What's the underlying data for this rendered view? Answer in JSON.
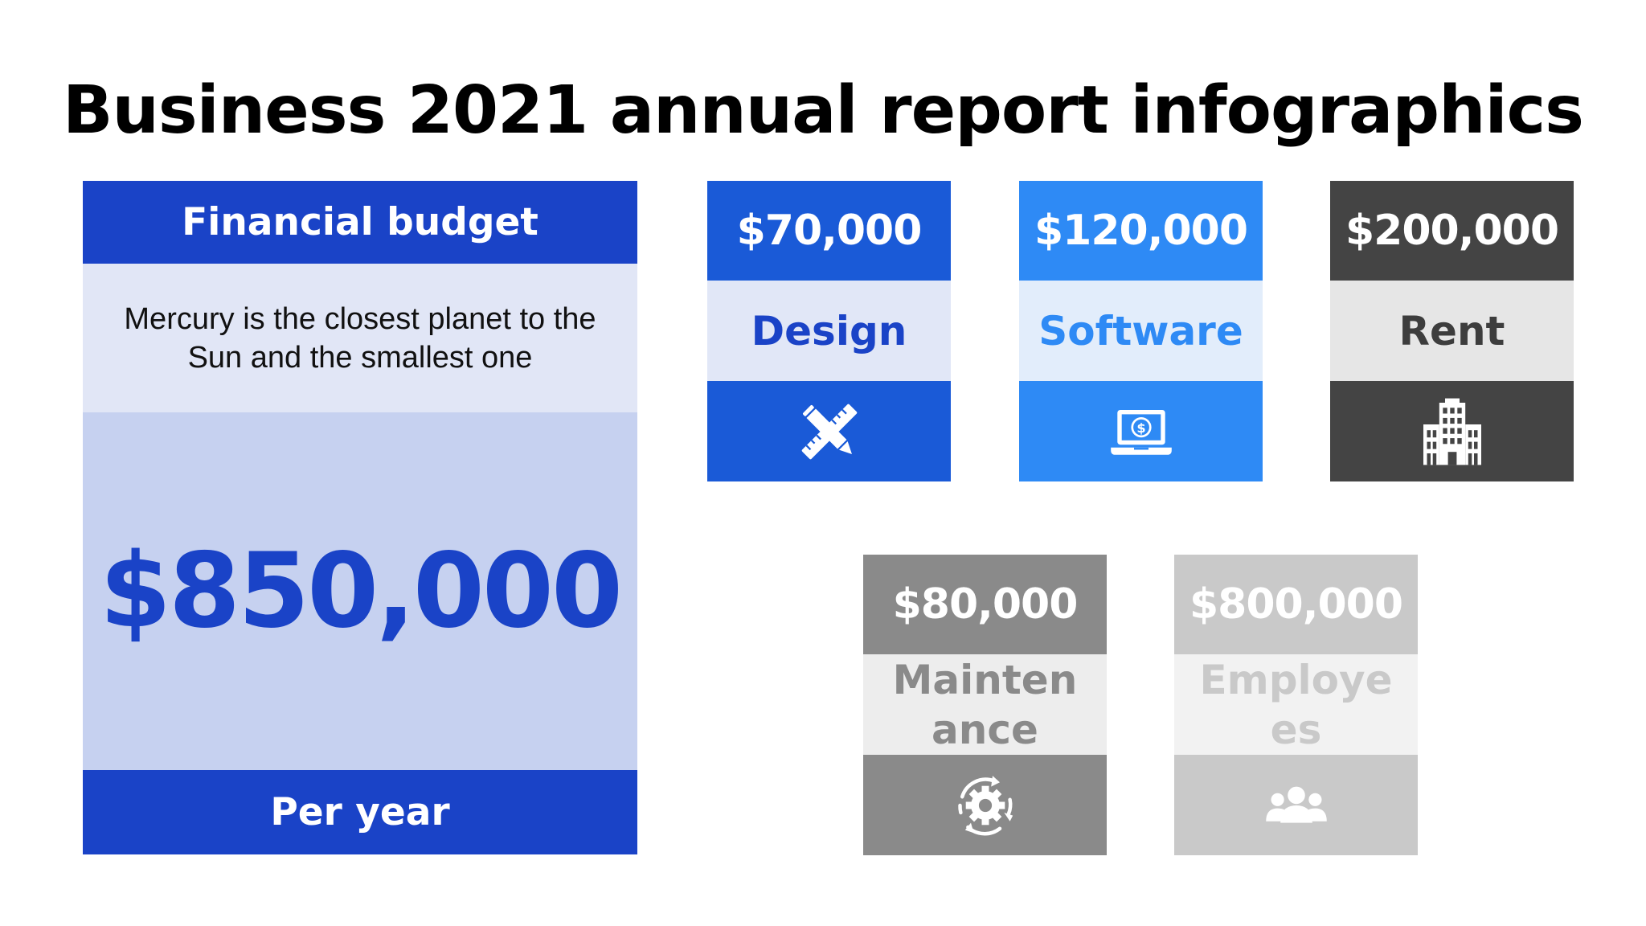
{
  "title": "Business 2021 annual report infographics",
  "budget": {
    "heading": "Financial budget",
    "description": "Mercury is the closest planet to the Sun and the smallest one",
    "amount": "$850,000",
    "footer": "Per year",
    "colors": {
      "primary": "#1a43c7",
      "light": "#e1e6f6",
      "mid": "#c6d1f0"
    }
  },
  "cards": [
    {
      "amount": "$70,000",
      "label": "Design",
      "icon": "pencil-ruler-icon",
      "colors": {
        "top": "#1a5ad7",
        "mid": "#e1e7f7",
        "text": "#1a43c7",
        "bottom": "#1a5ad7",
        "icon": "#ffffff"
      }
    },
    {
      "amount": "$120,000",
      "label": "Software",
      "icon": "laptop-dollar-icon",
      "colors": {
        "top": "#2e8af5",
        "mid": "#e2edfb",
        "text": "#2e8af5",
        "bottom": "#2e8af5",
        "icon": "#ffffff"
      }
    },
    {
      "amount": "$200,000",
      "label": "Rent",
      "icon": "office-building-icon",
      "colors": {
        "top": "#444444",
        "mid": "#e6e6e6",
        "text": "#3d3d3d",
        "bottom": "#444444",
        "icon": "#ffffff"
      }
    },
    {
      "amount": "$80,000",
      "label": "Maintenance",
      "icon": "gear-cycle-icon",
      "colors": {
        "top": "#8a8a8a",
        "mid": "#ededed",
        "text": "#8a8a8a",
        "bottom": "#8a8a8a",
        "icon": "#ffffff"
      }
    },
    {
      "amount": "$800,000",
      "label": "Employees",
      "icon": "people-group-icon",
      "colors": {
        "top": "#c9c9c9",
        "mid": "#f2f2f2",
        "text": "#c9c9c9",
        "bottom": "#c9c9c9",
        "icon": "#ffffff"
      }
    }
  ]
}
